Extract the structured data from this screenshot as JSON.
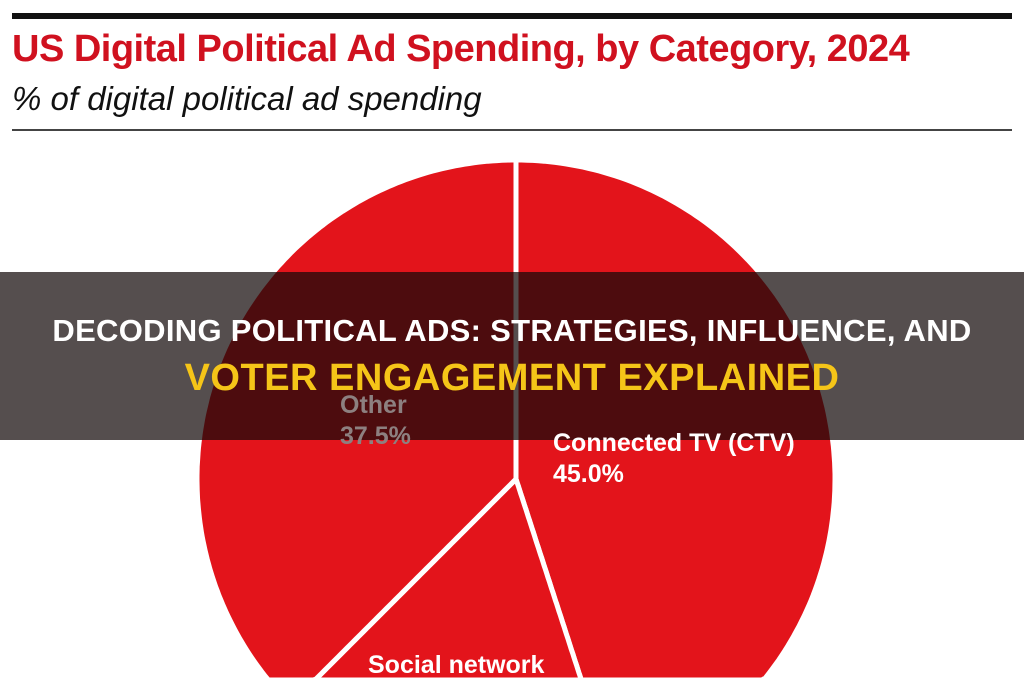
{
  "chart_data": {
    "type": "pie",
    "title": "US Digital Political Ad Spending, by Category, 2024",
    "subtitle": "% of digital political ad spending",
    "slices": [
      {
        "label": "Connected TV (CTV)",
        "value": 45.0,
        "value_label": "45.0%"
      },
      {
        "label": "Social network",
        "value": 17.5,
        "value_label": ""
      },
      {
        "label": "Other",
        "value": 37.5,
        "value_label": "37.5%"
      }
    ],
    "start": "top",
    "direction": "clockwise",
    "colors": {
      "slice": "#e3141b",
      "separator": "#ffffff",
      "title": "#d0111f"
    }
  },
  "overlay": {
    "line1": "DECODING POLITICAL ADS: STRATEGIES, INFLUENCE, AND",
    "line2": "VOTER ENGAGEMENT EXPLAINED"
  }
}
